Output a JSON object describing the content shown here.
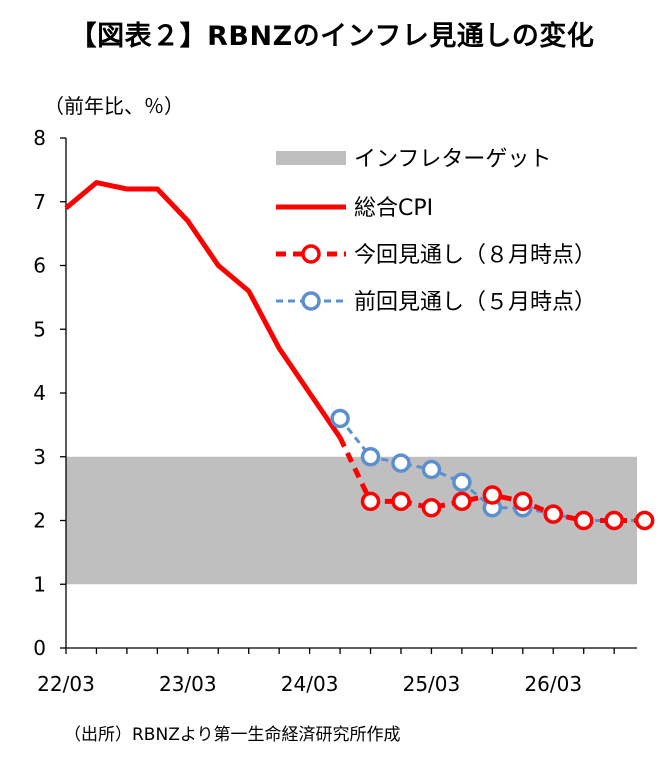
{
  "title": "【図表２】RBNZのインフレ見通しの変化",
  "unit_label": "（前年比、％）",
  "source_note": "（出所）RBNZより第一生命経済研究所作成",
  "chart_data": {
    "type": "line",
    "ylim": [
      0,
      8
    ],
    "yticks": [
      0,
      1,
      2,
      3,
      4,
      5,
      6,
      7,
      8
    ],
    "xlim": [
      0,
      18.75
    ],
    "xticks": [
      {
        "pos": 0,
        "label": "22/03"
      },
      {
        "pos": 4,
        "label": "23/03"
      },
      {
        "pos": 8,
        "label": "24/03"
      },
      {
        "pos": 12,
        "label": "25/03"
      },
      {
        "pos": 16,
        "label": "26/03"
      }
    ],
    "target_band": {
      "name": "インフレターゲット",
      "low": 1,
      "high": 3,
      "color": "#bfbfbf"
    },
    "series": [
      {
        "name": "総合CPI",
        "style": "solid",
        "color": "#ff0000",
        "markers": false,
        "x": [
          0,
          1,
          2,
          3,
          4,
          5,
          6,
          7,
          8,
          9
        ],
        "y": [
          6.9,
          7.3,
          7.2,
          7.2,
          6.7,
          6.0,
          5.6,
          4.7,
          4.0,
          3.3
        ]
      },
      {
        "name": "今回見通し（８月時点）",
        "style": "dashed",
        "color": "#ff0000",
        "markers": true,
        "x": [
          9,
          10,
          11,
          12,
          13,
          14,
          15,
          16,
          17,
          18,
          19
        ],
        "y": [
          3.3,
          2.3,
          2.3,
          2.2,
          2.3,
          2.4,
          2.3,
          2.1,
          2.0,
          2.0,
          2.0
        ],
        "marker_from": 1
      },
      {
        "name": "前回見通し（５月時点）",
        "style": "dashed",
        "color": "#5b8fd0",
        "markers": true,
        "x": [
          9,
          10,
          11,
          12,
          13,
          14,
          15,
          16,
          17,
          18,
          19
        ],
        "y": [
          3.6,
          3.0,
          2.9,
          2.8,
          2.6,
          2.2,
          2.2,
          2.1,
          2.0,
          2.0,
          2.0
        ],
        "marker_from": 0
      }
    ],
    "legend_position": "top-right"
  }
}
